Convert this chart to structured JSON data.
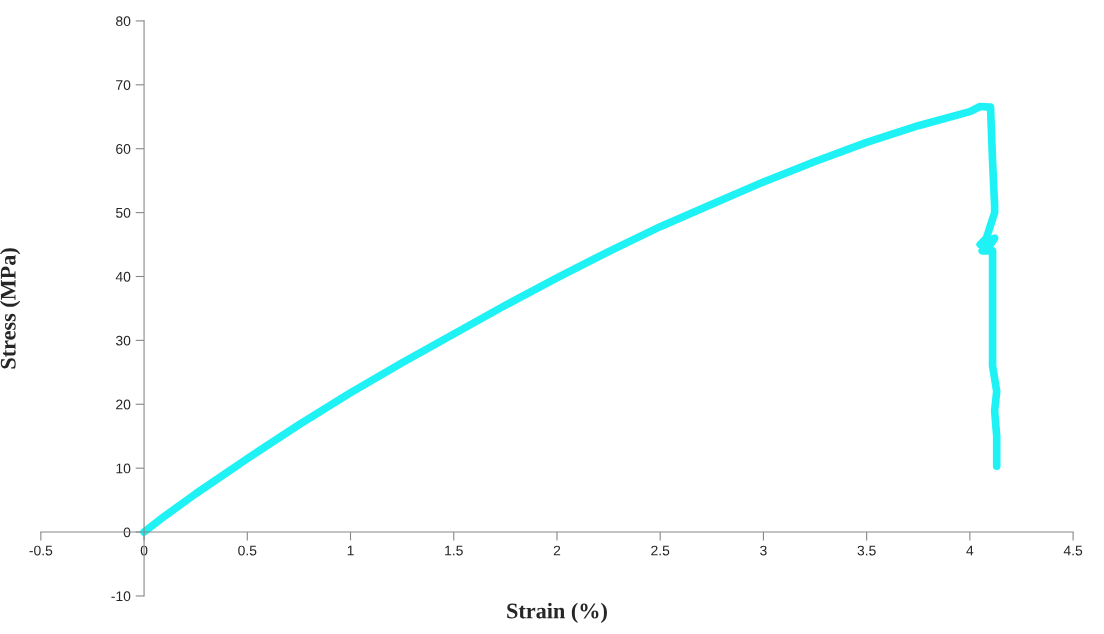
{
  "chart_data": {
    "type": "line",
    "xlabel": "Strain (%)",
    "ylabel": "Stress (MPa)",
    "xlim": [
      -0.5,
      4.5
    ],
    "xticks": [
      -0.5,
      0,
      0.5,
      1,
      1.5,
      2,
      2.5,
      3,
      3.5,
      4,
      4.5
    ],
    "ylim": [
      -10,
      80
    ],
    "yticks": [
      -10,
      0,
      10,
      20,
      30,
      40,
      50,
      60,
      70,
      80
    ],
    "grid": false,
    "marker": "none",
    "line_style": "solid",
    "series": [
      {
        "color": "#1ef2f5",
        "x": [
          0,
          0.1,
          0.25,
          0.5,
          0.75,
          1,
          1.25,
          1.5,
          1.75,
          2,
          2.25,
          2.5,
          2.75,
          3,
          3.25,
          3.5,
          3.75,
          4,
          4.05,
          4.1,
          4.11,
          4.12,
          4.12,
          4.08,
          4.05,
          4.12,
          4.1,
          4.06,
          4.11,
          4.11,
          4.11,
          4.12,
          4.13,
          4.12,
          4.13,
          4.13
        ],
        "values": [
          0,
          2.5,
          6,
          11.5,
          16.8,
          21.8,
          26.5,
          31,
          35.5,
          39.8,
          43.9,
          47.8,
          51.3,
          54.8,
          58,
          61,
          63.6,
          65.8,
          66.6,
          66.5,
          58,
          51,
          50,
          46,
          45,
          46,
          45,
          44,
          44,
          35,
          26,
          24,
          22,
          19,
          15,
          10.3
        ]
      }
    ]
  }
}
